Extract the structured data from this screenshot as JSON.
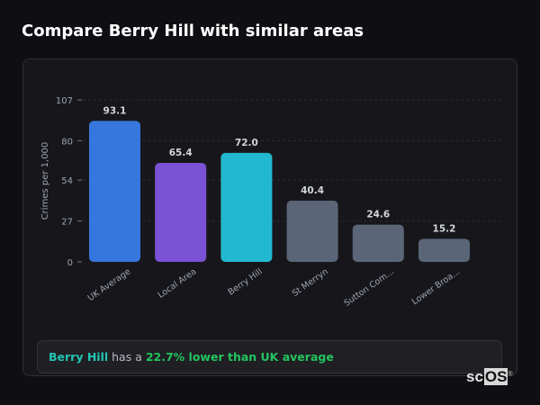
{
  "header": {
    "title": "Compare Berry Hill with similar areas"
  },
  "chart_data": {
    "type": "bar",
    "title": "",
    "xlabel": "",
    "ylabel": "Crimes per 1,000",
    "ylim": [
      0,
      107
    ],
    "yticks": [
      0,
      27,
      54,
      80,
      107
    ],
    "grid": true,
    "categories": [
      "UK Average",
      "Local Area",
      "Berry Hill",
      "St Merryn",
      "Sutton Com...",
      "Lower Broa..."
    ],
    "values": [
      93.1,
      65.4,
      72.0,
      40.4,
      24.6,
      15.2
    ],
    "value_labels": [
      "93.1",
      "65.4",
      "72.0",
      "40.4",
      "24.6",
      "15.2"
    ],
    "colors": [
      "#3577dc",
      "#7b52d6",
      "#22b8cf",
      "#5a6577",
      "#5a6577",
      "#5a6577"
    ]
  },
  "summary": {
    "area": "Berry Hill",
    "text": " has a ",
    "difference": "22.7% lower than UK average"
  },
  "watermark": {
    "prefix": "sc",
    "boxed": "OS",
    "mark": "®"
  }
}
